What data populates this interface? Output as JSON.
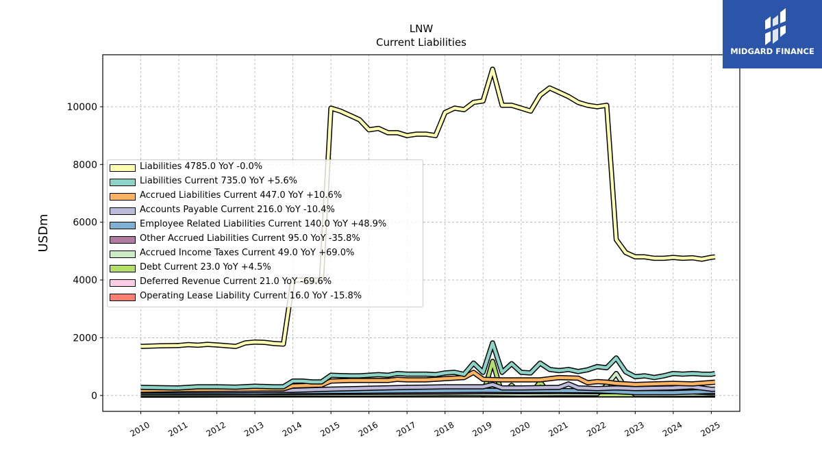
{
  "title": "LNW",
  "subtitle": "Current  Liabilities",
  "brand": {
    "name": "MIDGARD FINANCE",
    "color": "#2b55a8"
  },
  "chart_data": {
    "type": "area",
    "ylabel": "USDm",
    "xlabel": "",
    "ylim": [
      -550,
      11800
    ],
    "xlim": [
      2009.0,
      2025.75
    ],
    "grid": true,
    "legend_position": "center-left",
    "x_ticks": [
      "2010",
      "2011",
      "2012",
      "2013",
      "2014",
      "2015",
      "2016",
      "2017",
      "2018",
      "2019",
      "2020",
      "2021",
      "2022",
      "2023",
      "2024",
      "2025"
    ],
    "y_ticks": [
      0,
      2000,
      4000,
      6000,
      8000,
      10000
    ],
    "series": [
      {
        "name": "Liabilities",
        "legend_label": "Liabilities  4785.0 YoY -0.0%",
        "color": "#ffffb3",
        "x": [
          2010.0,
          2010.5,
          2011.0,
          2011.25,
          2011.5,
          2011.75,
          2012.0,
          2012.5,
          2012.75,
          2013.0,
          2013.25,
          2013.5,
          2013.75,
          2014.0,
          2014.5,
          2014.75,
          2015.0,
          2015.25,
          2015.5,
          2015.75,
          2016.0,
          2016.25,
          2016.5,
          2016.75,
          2017.0,
          2017.25,
          2017.5,
          2017.75,
          2018.0,
          2018.25,
          2018.5,
          2018.75,
          2019.0,
          2019.25,
          2019.5,
          2019.75,
          2020.0,
          2020.25,
          2020.5,
          2020.75,
          2021.0,
          2021.25,
          2021.5,
          2021.75,
          2022.0,
          2022.25,
          2022.5,
          2022.75,
          2023.0,
          2023.25,
          2023.5,
          2023.75,
          2024.0,
          2024.25,
          2024.5,
          2024.75,
          2025.0,
          2025.1
        ],
        "values": [
          1700,
          1720,
          1730,
          1760,
          1740,
          1770,
          1750,
          1700,
          1820,
          1850,
          1840,
          1800,
          1780,
          4000,
          4000,
          4000,
          9950,
          9850,
          9700,
          9550,
          9200,
          9250,
          9100,
          9100,
          9000,
          9050,
          9050,
          9000,
          9800,
          9950,
          9900,
          10150,
          10200,
          11300,
          10050,
          10050,
          9950,
          9850,
          10400,
          10650,
          10500,
          10350,
          10150,
          10050,
          10000,
          10050,
          5400,
          4950,
          4800,
          4800,
          4750,
          4750,
          4780,
          4750,
          4770,
          4720,
          4785,
          4800
        ]
      },
      {
        "name": "Liabilities Current",
        "legend_label": "Liabilities Current  735.0 YoY +5.6%",
        "color": "#8dd3c7",
        "x": [
          2010.0,
          2011.0,
          2011.5,
          2012.0,
          2012.5,
          2013.0,
          2013.5,
          2013.75,
          2014.0,
          2014.25,
          2014.5,
          2014.75,
          2015.0,
          2015.25,
          2015.5,
          2015.75,
          2016.0,
          2016.25,
          2016.5,
          2016.75,
          2017.0,
          2017.5,
          2017.75,
          2018.0,
          2018.25,
          2018.5,
          2018.75,
          2019.0,
          2019.25,
          2019.5,
          2019.75,
          2020.0,
          2020.25,
          2020.5,
          2020.75,
          2021.0,
          2021.25,
          2021.5,
          2021.75,
          2022.0,
          2022.25,
          2022.5,
          2022.75,
          2023.0,
          2023.25,
          2023.5,
          2023.75,
          2024.0,
          2024.25,
          2024.5,
          2024.75,
          2025.0,
          2025.1
        ],
        "values": [
          280,
          260,
          300,
          300,
          290,
          320,
          300,
          300,
          500,
          500,
          470,
          470,
          700,
          690,
          680,
          680,
          700,
          720,
          700,
          760,
          740,
          740,
          720,
          780,
          800,
          730,
          1120,
          800,
          1820,
          800,
          1100,
          800,
          780,
          1120,
          900,
          860,
          900,
          830,
          890,
          1000,
          960,
          1300,
          820,
          650,
          680,
          620,
          680,
          760,
          740,
          760,
          740,
          735,
          760
        ]
      },
      {
        "name": "Accrued Liabilities Current",
        "legend_label": "Accrued Liabilities Current  447.0 YoY +10.6%",
        "color": "#fdb462",
        "x": [
          2010.0,
          2011.0,
          2012.0,
          2013.0,
          2013.75,
          2014.0,
          2014.75,
          2015.0,
          2015.5,
          2016.0,
          2016.5,
          2016.75,
          2017.0,
          2017.5,
          2018.0,
          2018.5,
          2018.75,
          2019.0,
          2019.5,
          2020.0,
          2020.5,
          2021.0,
          2021.5,
          2021.75,
          2022.0,
          2022.25,
          2022.5,
          2022.75,
          2023.0,
          2023.5,
          2024.0,
          2024.5,
          2025.0,
          2025.1
        ],
        "values": [
          180,
          200,
          210,
          220,
          230,
          330,
          360,
          500,
          520,
          520,
          520,
          560,
          540,
          540,
          580,
          620,
          800,
          560,
          540,
          540,
          540,
          620,
          600,
          440,
          480,
          460,
          420,
          400,
          380,
          400,
          420,
          400,
          447,
          460
        ]
      },
      {
        "name": "Accounts Payable Current",
        "legend_label": "Accounts Payable Current  216.0 YoY -10.4%",
        "color": "#bebada",
        "x": [
          2010.0,
          2011.0,
          2012.0,
          2013.0,
          2014.0,
          2015.0,
          2016.0,
          2017.0,
          2018.0,
          2019.0,
          2019.25,
          2019.5,
          2020.0,
          2021.0,
          2021.25,
          2021.5,
          2022.0,
          2022.5,
          2023.0,
          2024.0,
          2024.5,
          2025.0,
          2025.1
        ],
        "values": [
          150,
          160,
          160,
          170,
          180,
          220,
          250,
          280,
          300,
          300,
          380,
          260,
          260,
          280,
          400,
          260,
          240,
          260,
          240,
          260,
          300,
          216,
          220
        ]
      },
      {
        "name": "Employee Related Liabilities Current",
        "legend_label": "Employee Related Liabilities Current  140.0 YoY +48.9%",
        "color": "#80b1d3",
        "x": [
          2010.0,
          2011.0,
          2012.0,
          2013.0,
          2014.0,
          2015.0,
          2016.0,
          2017.0,
          2018.0,
          2019.0,
          2020.0,
          2021.0,
          2022.0,
          2023.0,
          2024.0,
          2025.0,
          2025.1
        ],
        "values": [
          100,
          110,
          110,
          110,
          130,
          140,
          150,
          160,
          170,
          180,
          170,
          170,
          160,
          100,
          100,
          140,
          145
        ]
      },
      {
        "name": "Other Accrued Liabilities Current",
        "legend_label": "Other Accrued Liabilities Current  95.0 YoY -35.8%",
        "color": "#b07aa1",
        "x": [
          2010.0,
          2012.0,
          2014.0,
          2016.0,
          2018.0,
          2019.0,
          2020.0,
          2021.0,
          2022.0,
          2023.0,
          2024.0,
          2025.0,
          2025.1
        ],
        "values": [
          90,
          90,
          100,
          110,
          120,
          130,
          130,
          140,
          130,
          140,
          150,
          95,
          100
        ]
      },
      {
        "name": "Accrued Income Taxes Current",
        "legend_label": "Accrued Income Taxes Current  49.0 YoY +69.0%",
        "color": "#ccebc5",
        "x": [
          2010.0,
          2012.0,
          2014.0,
          2016.0,
          2018.0,
          2019.0,
          2020.0,
          2021.0,
          2022.0,
          2022.25,
          2022.5,
          2022.75,
          2023.0,
          2024.0,
          2025.0,
          2025.1
        ],
        "values": [
          40,
          40,
          50,
          50,
          60,
          60,
          50,
          60,
          60,
          350,
          760,
          250,
          40,
          40,
          49,
          50
        ]
      },
      {
        "name": "Debt Current",
        "legend_label": "Debt Current  23.0 YoY +4.5%",
        "color": "#b3de69",
        "x": [
          2010.0,
          2010.9,
          2010.95,
          2018.9,
          2019.0,
          2019.25,
          2019.5,
          2019.75,
          2020.0,
          2020.25,
          2020.5,
          2020.75,
          2021.0,
          2022.0,
          2023.0,
          2024.0,
          2025.0,
          2025.1
        ],
        "values": [
          40,
          40,
          20,
          20,
          30,
          1180,
          30,
          350,
          40,
          40,
          470,
          40,
          25,
          25,
          25,
          25,
          23,
          23
        ]
      },
      {
        "name": "Deferred Revenue Current",
        "legend_label": "Deferred Revenue Current  21.0 YoY -69.6%",
        "color": "#fccde5",
        "x": [
          2010.0,
          2011.0,
          2012.0,
          2013.0,
          2014.0,
          2015.0,
          2016.0,
          2017.0,
          2018.0,
          2019.0,
          2020.0,
          2021.0,
          2022.0,
          2023.0,
          2024.0,
          2025.0,
          2025.1
        ],
        "values": [
          10,
          10,
          20,
          30,
          50,
          60,
          70,
          80,
          70,
          60,
          50,
          40,
          40,
          30,
          40,
          21,
          20
        ]
      },
      {
        "name": "Operating Lease Liability Current",
        "legend_label": "Operating Lease Liability Current  16.0 YoY -15.8%",
        "color": "#fb8072",
        "x": [
          2018.95,
          2020.0,
          2021.0,
          2022.0,
          2023.0,
          2024.0,
          2025.0,
          2025.1
        ],
        "values": [
          16,
          18,
          20,
          19,
          18,
          17,
          16,
          16
        ]
      }
    ]
  }
}
